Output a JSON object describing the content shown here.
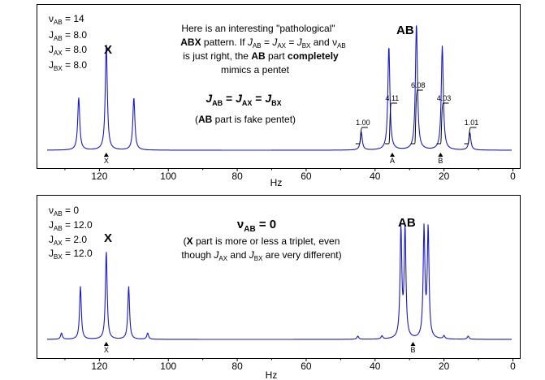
{
  "colors": {
    "trace": "#1a1acc",
    "axis": "#000000",
    "background": "#ffffff"
  },
  "chart_data": [
    {
      "type": "line",
      "xlabel": "Hz",
      "xlim": [
        138,
        -2
      ],
      "x_direction": "decreasing",
      "ticks": [
        "120",
        "100",
        "80",
        "60",
        "40",
        "20",
        "0"
      ],
      "tick_values": [
        120,
        100,
        80,
        60,
        40,
        20,
        0
      ],
      "params": [
        {
          "sym": "ν",
          "sub": "AB",
          "val": " = 14"
        },
        {
          "sym": "J",
          "sub": "AB",
          "val": " = 8.0"
        },
        {
          "sym": "J",
          "sub": "AX",
          "val": " = 8.0"
        },
        {
          "sym": "J",
          "sub": "BX",
          "val": " = 8.0"
        }
      ],
      "label_x": "X",
      "label_ab": "AB",
      "markers": [
        {
          "x": 118,
          "label": "X"
        },
        {
          "x": 35,
          "label": "A"
        },
        {
          "x": 21,
          "label": "B"
        }
      ],
      "integrals": [
        {
          "x": 44,
          "label": "1.00"
        },
        {
          "x": 35.5,
          "label": "4.11"
        },
        {
          "x": 28,
          "label": "6.08"
        },
        {
          "x": 20.5,
          "label": "4.03"
        },
        {
          "x": 12.5,
          "label": "1.01"
        }
      ],
      "peaks": [
        {
          "x": 126,
          "h": 0.51
        },
        {
          "x": 118,
          "h": 1.03
        },
        {
          "x": 110,
          "h": 0.51
        },
        {
          "x": 44,
          "h": 0.17
        },
        {
          "x": 36,
          "h": 1.01
        },
        {
          "x": 28,
          "h": 1.23
        },
        {
          "x": 20.5,
          "h": 1.01
        },
        {
          "x": 12.5,
          "h": 0.17
        }
      ],
      "annotation": {
        "line1": "Here is an interesting \"pathological\"",
        "line2_bold": "ABX",
        "line2_text": " pattern.  If ",
        "line2_j1": "J",
        "line2_j1_sub": "AB",
        "line2_eq": " = ",
        "line2_j2": "J",
        "line2_j2_sub": "AX",
        "line2_and": " = ",
        "line2_j3": "J",
        "line2_j3_sub": "BX",
        "line2_and2": " and ",
        "line2_nu": "ν",
        "line2_nu_sub": "AB",
        "line3_pre": "is just right, the ",
        "line3_bold1": "AB",
        "line3_mid": " part ",
        "line3_bold2": "completely",
        "line4": "mimics a pentet",
        "eq_j": "J",
        "eq_ab": "AB",
        "eq_eq1": " = ",
        "eq_ax": "AX",
        "eq_eq2": " = ",
        "eq_bx": "BX",
        "sub_open": "(",
        "sub_bold": "AB",
        "sub_text": " part is fake pentet)"
      }
    },
    {
      "type": "line",
      "xlabel": "Hz",
      "xlim": [
        138,
        -2
      ],
      "x_direction": "decreasing",
      "ticks": [
        "120",
        "100",
        "80",
        "60",
        "40",
        "20",
        "0"
      ],
      "tick_values": [
        120,
        100,
        80,
        60,
        40,
        20,
        0
      ],
      "params": [
        {
          "sym": "ν",
          "sub": "AB",
          "val": " = 0"
        },
        {
          "sym": "J",
          "sub": "AB",
          "val": " = 12.0"
        },
        {
          "sym": "J",
          "sub": "AX",
          "val": " = 2.0"
        },
        {
          "sym": "J",
          "sub": "BX",
          "val": " = 12.0"
        }
      ],
      "label_x": "X",
      "label_ab": "AB",
      "markers": [
        {
          "x": 118,
          "label": "X"
        },
        {
          "x": 29,
          "label": "B"
        }
      ],
      "peaks": [
        {
          "x": 131,
          "h": 0.06
        },
        {
          "x": 125.5,
          "h": 0.51
        },
        {
          "x": 118,
          "h": 0.85
        },
        {
          "x": 111.5,
          "h": 0.51
        },
        {
          "x": 106,
          "h": 0.06
        },
        {
          "x": 45,
          "h": 0.03
        },
        {
          "x": 38,
          "h": 0.03
        },
        {
          "x": 32.5,
          "h": 1.05
        },
        {
          "x": 31.3,
          "h": 1.05
        },
        {
          "x": 25.8,
          "h": 1.05
        },
        {
          "x": 24.6,
          "h": 1.05
        },
        {
          "x": 20,
          "h": 0.03
        },
        {
          "x": 13,
          "h": 0.03
        }
      ],
      "annotation": {
        "title_nu": "ν",
        "title_sub": "AB",
        "title_val": " = 0",
        "line1_open": "(",
        "line1_bold": "X",
        "line1_text": " part is more or less a triplet, even",
        "line2_pre": "though ",
        "line2_j1": "J",
        "line2_j1_sub": "AX",
        "line2_and": " and ",
        "line2_j2": "J",
        "line2_j2_sub": "BX",
        "line2_post": " are very different)"
      }
    }
  ]
}
